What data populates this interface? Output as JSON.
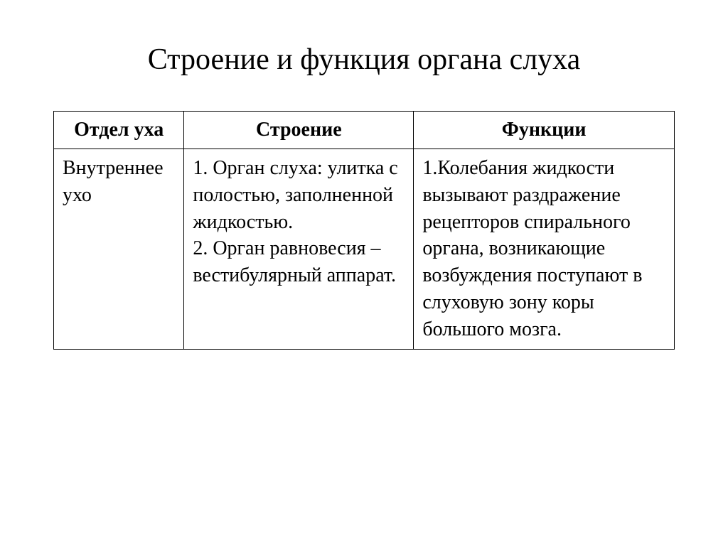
{
  "title": "Строение и функция органа слуха",
  "table": {
    "columns": [
      {
        "label": "Отдел уха",
        "width_class": "col-1"
      },
      {
        "label": "Строение",
        "width_class": "col-2"
      },
      {
        "label": "Функции",
        "width_class": "col-3"
      }
    ],
    "rows": [
      {
        "section": "Внутреннее ухо",
        "structure": "1. Орган слуха: улитка с полостью, заполненной жидкостью.\n2. Орган равновесия – вестибулярный аппарат.",
        "functions": "1.Колебания жидкости вызывают раздражение рецепторов спирального органа, возникающие возбуждения поступают в слуховую зону коры большого мозга."
      }
    ]
  },
  "style": {
    "background_color": "#ffffff",
    "text_color": "#000000",
    "border_color": "#000000",
    "title_fontsize": 42,
    "cell_fontsize": 28,
    "font_family": "Times New Roman"
  }
}
